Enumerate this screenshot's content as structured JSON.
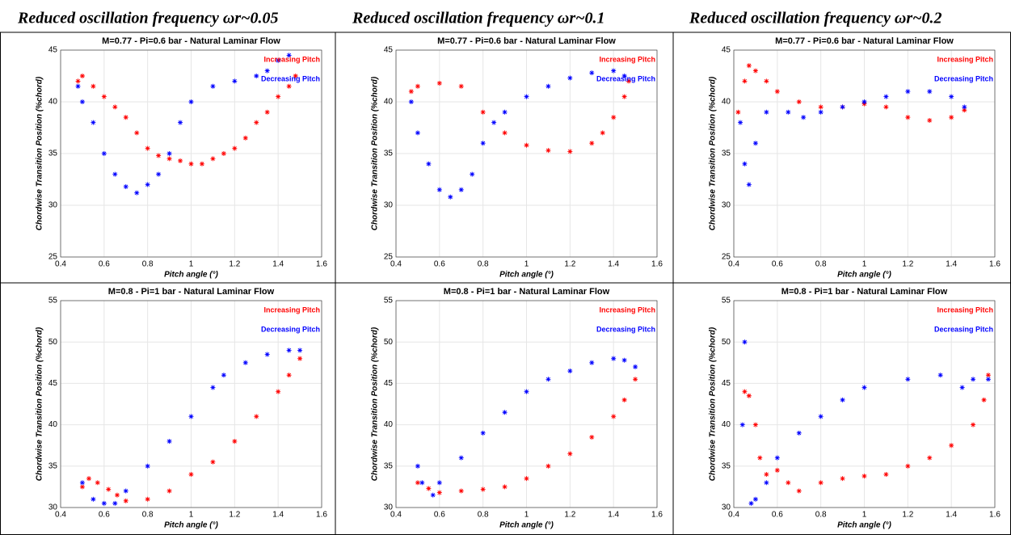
{
  "column_headers": [
    "Reduced oscillation frequency ωr~0.05",
    "Reduced oscillation frequency ωr~0.1",
    "Reduced oscillation frequency ωr~0.2"
  ],
  "chart_data": [
    {
      "type": "scatter",
      "title": "M=0.77 -  Pi=0.6 bar -  Natural Laminar Flow",
      "xlabel": "Pitch angle (°)",
      "ylabel": "Chordwise Transition Position (%chord)",
      "xlim": [
        0.4,
        1.6
      ],
      "xticks": [
        0.4,
        0.6,
        0.8,
        1,
        1.2,
        1.4,
        1.6
      ],
      "ylim": [
        25,
        45
      ],
      "yticks": [
        25,
        30,
        35,
        40,
        45
      ],
      "grid": true,
      "legend": "upper right",
      "series": [
        {
          "name": "Increasing Pitch",
          "color": "#ff0000",
          "x": [
            0.48,
            0.5,
            0.55,
            0.6,
            0.65,
            0.7,
            0.75,
            0.8,
            0.85,
            0.9,
            0.95,
            1.0,
            1.05,
            1.1,
            1.15,
            1.2,
            1.25,
            1.3,
            1.35,
            1.4,
            1.45,
            1.48
          ],
          "values": [
            42,
            42.5,
            41.5,
            40.5,
            39.5,
            38.5,
            37,
            35.5,
            34.8,
            34.5,
            34.3,
            34,
            34,
            34.5,
            35,
            35.5,
            36.5,
            38,
            39,
            40.5,
            41.5,
            42.5
          ]
        },
        {
          "name": "Decreasing Pitch",
          "color": "#0000ff",
          "x": [
            1.45,
            1.4,
            1.35,
            1.3,
            1.2,
            1.1,
            1.0,
            0.95,
            0.9,
            0.85,
            0.8,
            0.75,
            0.7,
            0.65,
            0.6,
            0.55,
            0.5,
            0.48
          ],
          "values": [
            44.5,
            44,
            43,
            42.5,
            42,
            41.5,
            40,
            38,
            35,
            33,
            32,
            31.2,
            31.8,
            33,
            35,
            38,
            40,
            41.5
          ]
        }
      ]
    },
    {
      "type": "scatter",
      "title": "M=0.77 -  Pi=0.6 bar -  Natural Laminar Flow",
      "xlabel": "Pitch angle (°)",
      "ylabel": "Chordwise Transition Position (%chord)",
      "xlim": [
        0.4,
        1.6
      ],
      "xticks": [
        0.4,
        0.6,
        0.8,
        1,
        1.2,
        1.4,
        1.6
      ],
      "ylim": [
        25,
        45
      ],
      "yticks": [
        25,
        30,
        35,
        40,
        45
      ],
      "grid": true,
      "legend": "upper right",
      "series": [
        {
          "name": "Increasing Pitch",
          "color": "#ff0000",
          "x": [
            0.47,
            0.5,
            0.6,
            0.7,
            0.8,
            0.9,
            1.0,
            1.1,
            1.2,
            1.3,
            1.35,
            1.4,
            1.45,
            1.47
          ],
          "values": [
            41,
            41.5,
            41.8,
            41.5,
            39,
            37,
            35.8,
            35.3,
            35.2,
            36,
            37,
            38.5,
            40.5,
            42
          ]
        },
        {
          "name": "Decreasing Pitch",
          "color": "#0000ff",
          "x": [
            1.45,
            1.4,
            1.3,
            1.2,
            1.1,
            1.0,
            0.9,
            0.85,
            0.8,
            0.75,
            0.7,
            0.65,
            0.6,
            0.55,
            0.5,
            0.47
          ],
          "values": [
            42.5,
            43,
            42.8,
            42.3,
            41.5,
            40.5,
            39,
            38,
            36,
            33,
            31.5,
            30.8,
            31.5,
            34,
            37,
            40
          ]
        }
      ]
    },
    {
      "type": "scatter",
      "title": "M=0.77 -  Pi=0.6 bar -  Natural Laminar Flow",
      "xlabel": "Pitch angle (°)",
      "ylabel": "Chordwise Transition Position (%chord)",
      "xlim": [
        0.4,
        1.6
      ],
      "xticks": [
        0.4,
        0.6,
        0.8,
        1,
        1.2,
        1.4,
        1.6
      ],
      "ylim": [
        25,
        45
      ],
      "yticks": [
        25,
        30,
        35,
        40,
        45
      ],
      "grid": true,
      "legend": "upper right",
      "series": [
        {
          "name": "Increasing Pitch",
          "color": "#ff0000",
          "x": [
            0.42,
            0.45,
            0.47,
            0.5,
            0.55,
            0.6,
            0.7,
            0.8,
            0.9,
            1.0,
            1.1,
            1.2,
            1.3,
            1.4,
            1.46
          ],
          "values": [
            39,
            42,
            43.5,
            43,
            42,
            41,
            40,
            39.5,
            39.5,
            39.8,
            39.5,
            38.5,
            38.2,
            38.5,
            39.2
          ]
        },
        {
          "name": "Decreasing Pitch",
          "color": "#0000ff",
          "x": [
            1.46,
            1.4,
            1.3,
            1.2,
            1.1,
            1.0,
            0.9,
            0.8,
            0.72,
            0.65,
            0.55,
            0.5,
            0.47,
            0.45,
            0.43
          ],
          "values": [
            39.5,
            40.5,
            41,
            41,
            40.5,
            40,
            39.5,
            39,
            38.5,
            39,
            39,
            36,
            32,
            34,
            38
          ]
        }
      ]
    },
    {
      "type": "scatter",
      "title": "M=0.8 -  Pi=1 bar -  Natural Laminar Flow",
      "xlabel": "Pitch angle (°)",
      "ylabel": "Chordwise Transition Position (%chord)",
      "xlim": [
        0.4,
        1.6
      ],
      "xticks": [
        0.4,
        0.6,
        0.8,
        1,
        1.2,
        1.4,
        1.6
      ],
      "ylim": [
        30,
        55
      ],
      "yticks": [
        30,
        35,
        40,
        45,
        50,
        55
      ],
      "grid": true,
      "legend": "upper right",
      "series": [
        {
          "name": "Increasing Pitch",
          "color": "#ff0000",
          "x": [
            0.5,
            0.53,
            0.57,
            0.62,
            0.66,
            0.7,
            0.8,
            0.9,
            1.0,
            1.1,
            1.2,
            1.3,
            1.4,
            1.45,
            1.5
          ],
          "values": [
            32.5,
            33.5,
            33,
            32.2,
            31.5,
            30.8,
            31,
            32,
            34,
            35.5,
            38,
            41,
            44,
            46,
            48
          ]
        },
        {
          "name": "Decreasing Pitch",
          "color": "#0000ff",
          "x": [
            1.5,
            1.45,
            1.35,
            1.25,
            1.15,
            1.1,
            1.0,
            0.9,
            0.8,
            0.7,
            0.65,
            0.6,
            0.55,
            0.5
          ],
          "values": [
            49,
            49,
            48.5,
            47.5,
            46,
            44.5,
            41,
            38,
            35,
            32,
            30.5,
            30.5,
            31,
            33
          ]
        }
      ]
    },
    {
      "type": "scatter",
      "title": "M=0.8 -  Pi=1 bar -  Natural Laminar Flow",
      "xlabel": "Pitch angle (°)",
      "ylabel": "Chordwise Transition Position (%chord)",
      "xlim": [
        0.4,
        1.6
      ],
      "xticks": [
        0.4,
        0.6,
        0.8,
        1,
        1.2,
        1.4,
        1.6
      ],
      "ylim": [
        30,
        55
      ],
      "yticks": [
        30,
        35,
        40,
        45,
        50,
        55
      ],
      "grid": true,
      "legend": "upper right",
      "series": [
        {
          "name": "Increasing Pitch",
          "color": "#ff0000",
          "x": [
            0.5,
            0.55,
            0.6,
            0.7,
            0.8,
            0.9,
            1.0,
            1.1,
            1.2,
            1.3,
            1.4,
            1.45,
            1.5
          ],
          "values": [
            33,
            32.3,
            31.8,
            32,
            32.2,
            32.5,
            33.5,
            35,
            36.5,
            38.5,
            41,
            43,
            45.5
          ]
        },
        {
          "name": "Decreasing Pitch",
          "color": "#0000ff",
          "x": [
            1.5,
            1.45,
            1.4,
            1.3,
            1.2,
            1.1,
            1.0,
            0.9,
            0.8,
            0.7,
            0.6,
            0.57,
            0.52,
            0.5
          ],
          "values": [
            47,
            47.8,
            48,
            47.5,
            46.5,
            45.5,
            44,
            41.5,
            39,
            36,
            33,
            31.5,
            33,
            35
          ]
        }
      ]
    },
    {
      "type": "scatter",
      "title": "M=0.8 -  Pi=1 bar -  Natural Laminar Flow",
      "xlabel": "Pitch angle (°)",
      "ylabel": "Chordwise Transition Position (%chord)",
      "xlim": [
        0.4,
        1.6
      ],
      "xticks": [
        0.4,
        0.6,
        0.8,
        1,
        1.2,
        1.4,
        1.6
      ],
      "ylim": [
        30,
        55
      ],
      "yticks": [
        30,
        35,
        40,
        45,
        50,
        55
      ],
      "grid": true,
      "legend": "upper right",
      "series": [
        {
          "name": "Increasing Pitch",
          "color": "#ff0000",
          "x": [
            0.45,
            0.47,
            0.5,
            0.52,
            0.55,
            0.6,
            0.65,
            0.7,
            0.8,
            0.9,
            1.0,
            1.1,
            1.2,
            1.3,
            1.4,
            1.5,
            1.55,
            1.57
          ],
          "values": [
            44,
            43.5,
            40,
            36,
            34,
            34.5,
            33,
            32,
            33,
            33.5,
            33.8,
            34,
            35,
            36,
            37.5,
            40,
            43,
            46
          ]
        },
        {
          "name": "Decreasing Pitch",
          "color": "#0000ff",
          "x": [
            1.57,
            1.5,
            1.45,
            1.35,
            1.2,
            1.0,
            0.9,
            0.8,
            0.7,
            0.6,
            0.55,
            0.5,
            0.48,
            0.45,
            0.44
          ],
          "values": [
            45.5,
            45.5,
            44.5,
            46,
            45.5,
            44.5,
            43,
            41,
            39,
            36,
            33,
            31,
            30.5,
            50,
            40
          ]
        }
      ]
    }
  ]
}
